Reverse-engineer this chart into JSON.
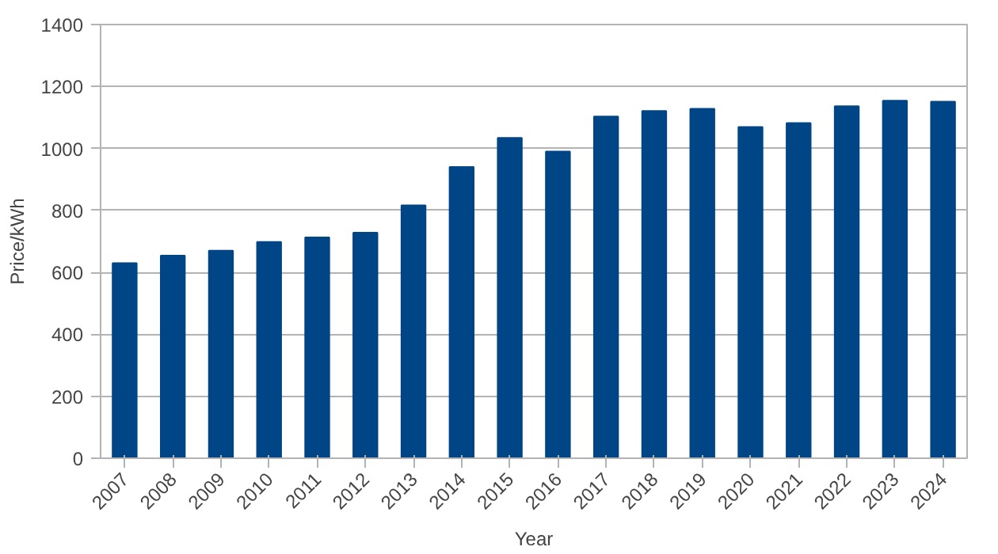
{
  "chart_data": {
    "type": "bar",
    "xlabel": "Year",
    "ylabel": "Price/kWh",
    "categories": [
      "2007",
      "2008",
      "2009",
      "2010",
      "2011",
      "2012",
      "2013",
      "2014",
      "2015",
      "2016",
      "2017",
      "2018",
      "2019",
      "2020",
      "2021",
      "2022",
      "2023",
      "2024"
    ],
    "values": [
      630,
      654,
      670,
      698,
      713,
      728,
      816,
      940,
      1034,
      990,
      1103,
      1121,
      1128,
      1069,
      1082,
      1136,
      1154,
      1151
    ],
    "color": "#004586",
    "ylim": [
      0,
      1400
    ],
    "yticks": [
      0,
      200,
      400,
      600,
      800,
      1000,
      1200,
      1400
    ],
    "grid": "y"
  }
}
